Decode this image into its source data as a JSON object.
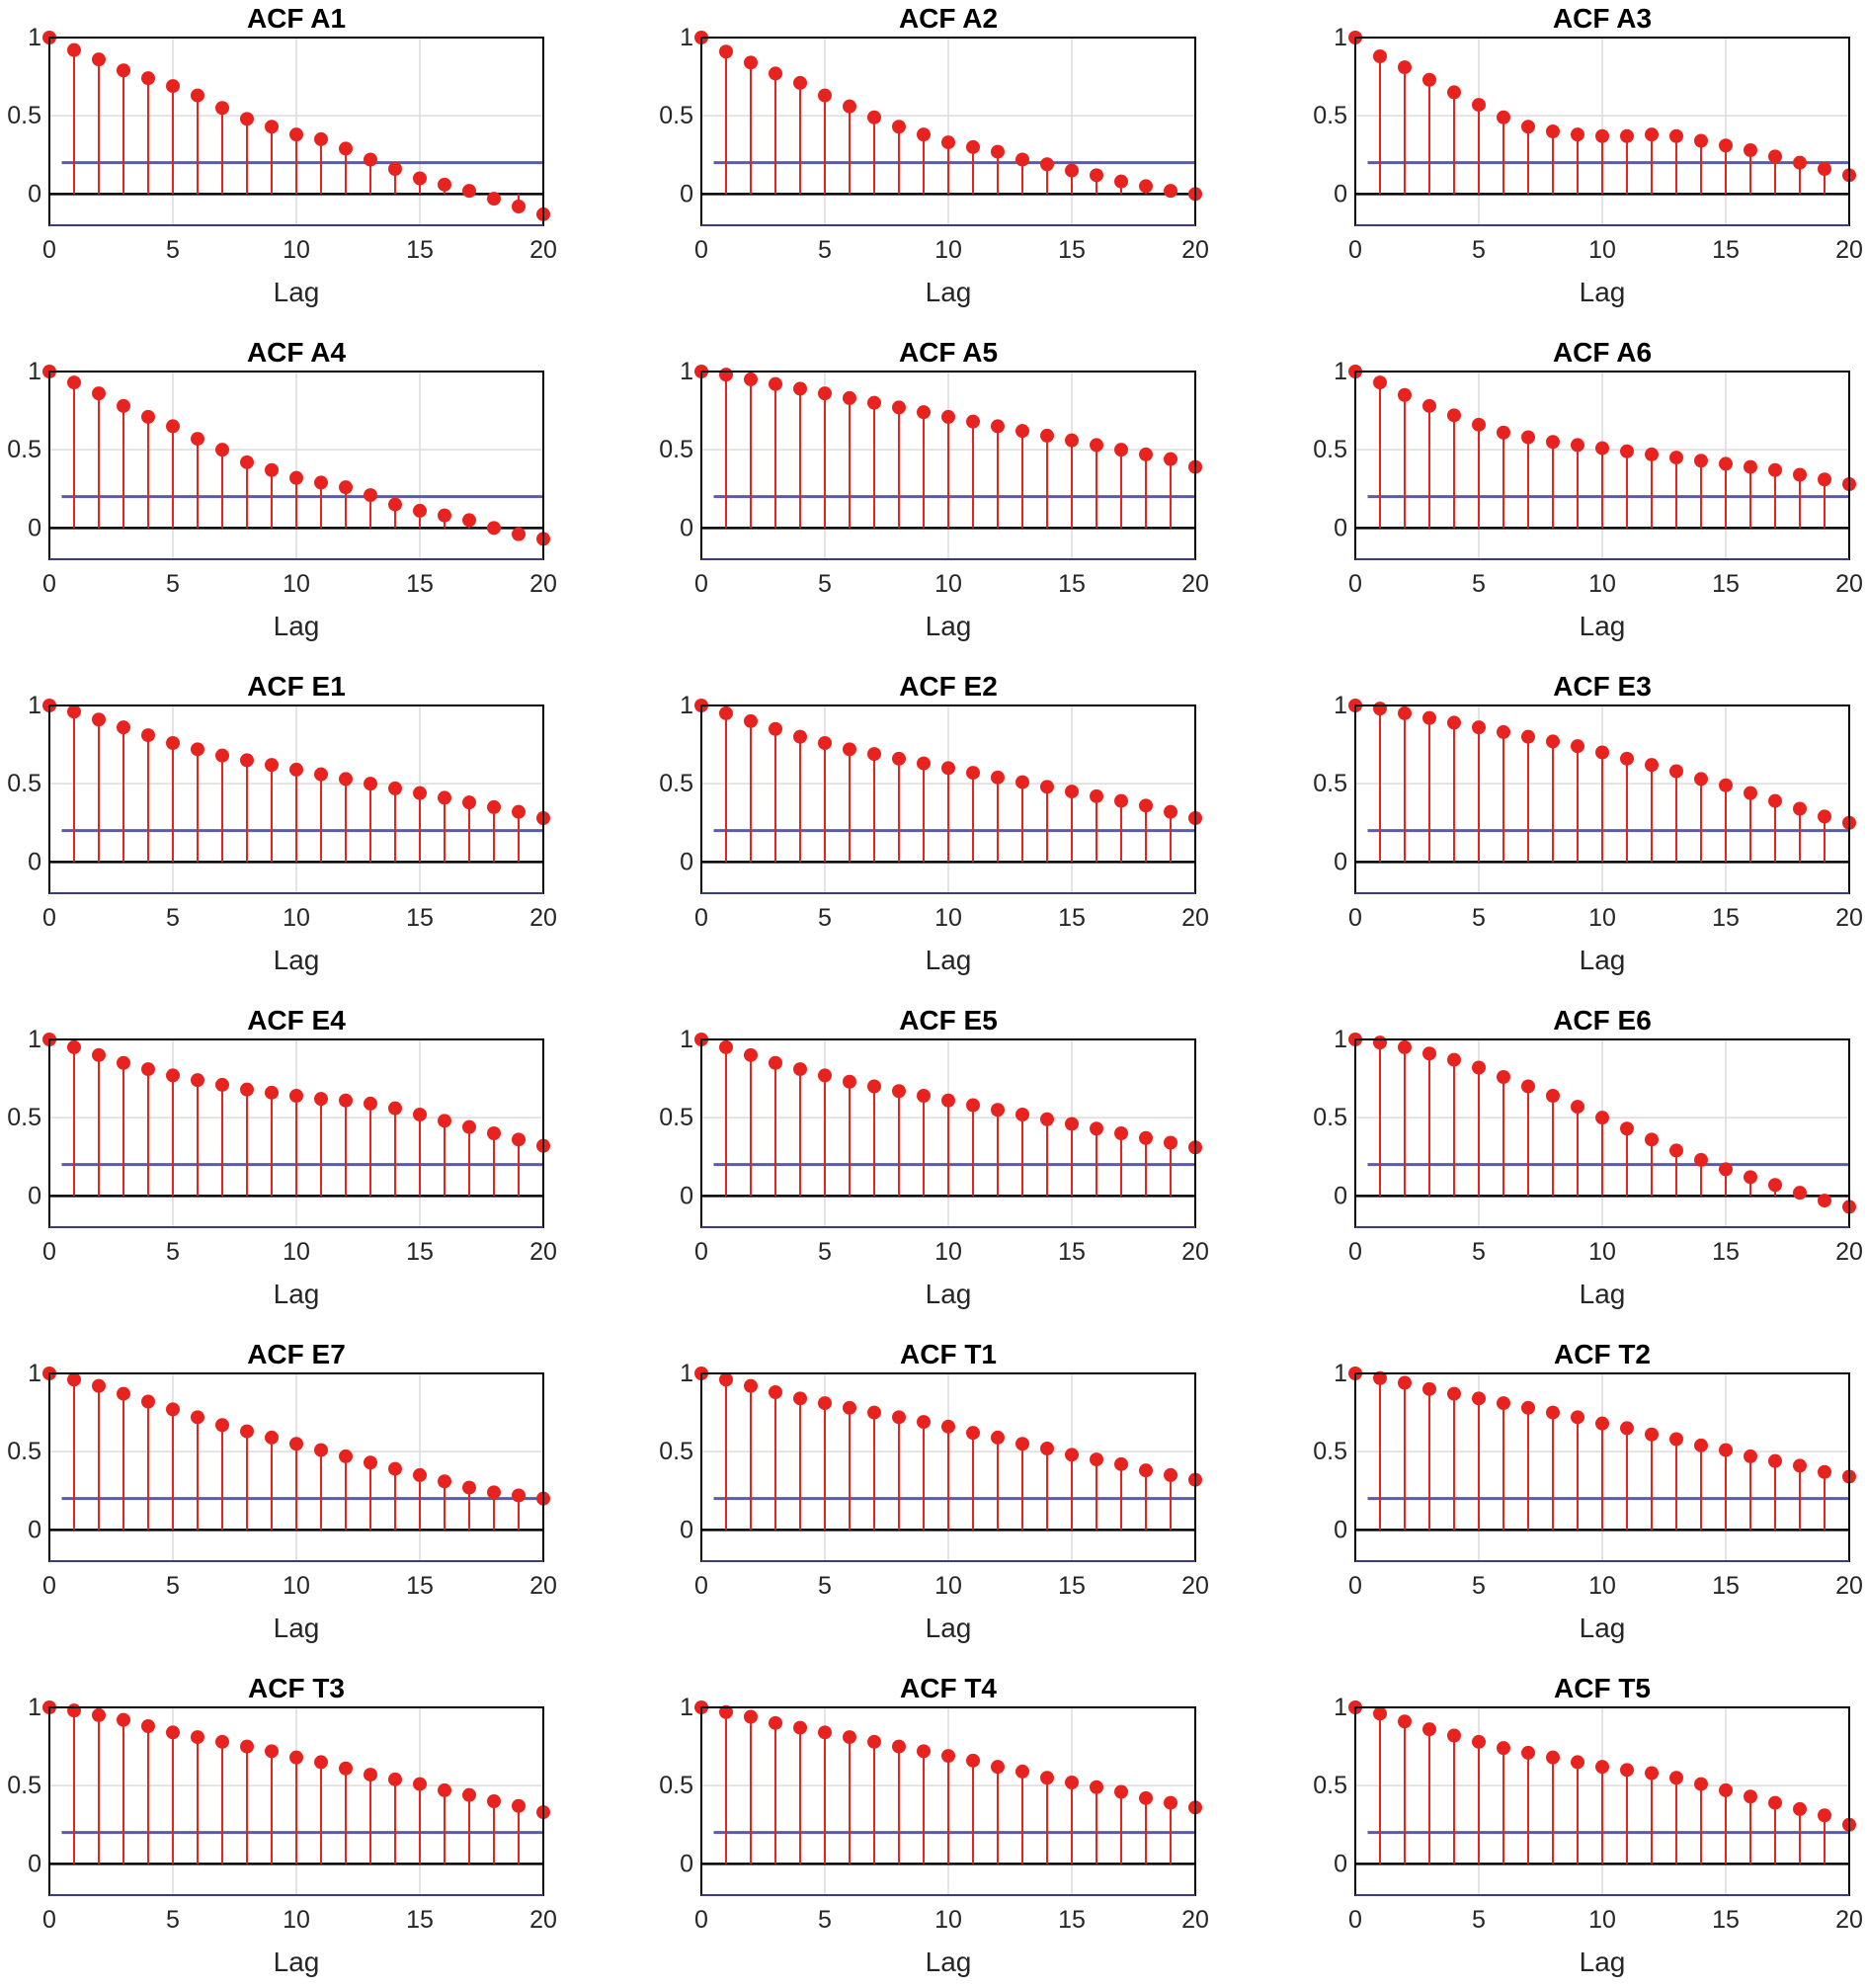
{
  "style": {
    "stem_color": "#e8231f",
    "marker_color": "#e8231f",
    "bound_color": "#5a5ab4",
    "axis_color": "#000000",
    "grid_color": "#dcdcdc",
    "zero_line_color": "#000000"
  },
  "chart_data": [
    {
      "type": "stem",
      "title": "ACF  A1",
      "xlabel": "Lag",
      "xlim": [
        0,
        20
      ],
      "ylim": [
        -0.2,
        1
      ],
      "xticks": [
        "0",
        "5",
        "10",
        "15",
        "20"
      ],
      "yticks": [
        "0",
        "0.5",
        "1"
      ],
      "grid": true,
      "upper_bound": 0.2,
      "x": [
        0,
        1,
        2,
        3,
        4,
        5,
        6,
        7,
        8,
        9,
        10,
        11,
        12,
        13,
        14,
        15,
        16,
        17,
        18,
        19,
        20
      ],
      "values": [
        1.0,
        0.92,
        0.86,
        0.79,
        0.74,
        0.69,
        0.63,
        0.55,
        0.48,
        0.43,
        0.38,
        0.35,
        0.29,
        0.22,
        0.16,
        0.1,
        0.06,
        0.02,
        -0.03,
        -0.08,
        -0.13
      ]
    },
    {
      "type": "stem",
      "title": "ACF  A2",
      "xlabel": "Lag",
      "xlim": [
        0,
        20
      ],
      "ylim": [
        -0.2,
        1
      ],
      "xticks": [
        "0",
        "5",
        "10",
        "15",
        "20"
      ],
      "yticks": [
        "0",
        "0.5",
        "1"
      ],
      "grid": true,
      "upper_bound": 0.2,
      "x": [
        0,
        1,
        2,
        3,
        4,
        5,
        6,
        7,
        8,
        9,
        10,
        11,
        12,
        13,
        14,
        15,
        16,
        17,
        18,
        19,
        20
      ],
      "values": [
        1.0,
        0.91,
        0.84,
        0.77,
        0.71,
        0.63,
        0.56,
        0.49,
        0.43,
        0.38,
        0.33,
        0.3,
        0.27,
        0.22,
        0.19,
        0.15,
        0.12,
        0.08,
        0.05,
        0.02,
        0.0
      ]
    },
    {
      "type": "stem",
      "title": "ACF  A3",
      "xlabel": "Lag",
      "xlim": [
        0,
        20
      ],
      "ylim": [
        -0.2,
        1
      ],
      "xticks": [
        "0",
        "5",
        "10",
        "15",
        "20"
      ],
      "yticks": [
        "0",
        "0.5",
        "1"
      ],
      "grid": true,
      "upper_bound": 0.2,
      "x": [
        0,
        1,
        2,
        3,
        4,
        5,
        6,
        7,
        8,
        9,
        10,
        11,
        12,
        13,
        14,
        15,
        16,
        17,
        18,
        19,
        20
      ],
      "values": [
        1.0,
        0.88,
        0.81,
        0.73,
        0.65,
        0.57,
        0.49,
        0.43,
        0.4,
        0.38,
        0.37,
        0.37,
        0.38,
        0.37,
        0.34,
        0.31,
        0.28,
        0.24,
        0.2,
        0.16,
        0.12
      ]
    },
    {
      "type": "stem",
      "title": "ACF  A4",
      "xlabel": "Lag",
      "xlim": [
        0,
        20
      ],
      "ylim": [
        -0.2,
        1
      ],
      "xticks": [
        "0",
        "5",
        "10",
        "15",
        "20"
      ],
      "yticks": [
        "0",
        "0.5",
        "1"
      ],
      "grid": true,
      "upper_bound": 0.2,
      "x": [
        0,
        1,
        2,
        3,
        4,
        5,
        6,
        7,
        8,
        9,
        10,
        11,
        12,
        13,
        14,
        15,
        16,
        17,
        18,
        19,
        20
      ],
      "values": [
        1.0,
        0.93,
        0.86,
        0.78,
        0.71,
        0.65,
        0.57,
        0.5,
        0.42,
        0.37,
        0.32,
        0.29,
        0.26,
        0.21,
        0.15,
        0.11,
        0.08,
        0.05,
        0.0,
        -0.04,
        -0.07
      ]
    },
    {
      "type": "stem",
      "title": "ACF  A5",
      "xlabel": "Lag",
      "xlim": [
        0,
        20
      ],
      "ylim": [
        -0.2,
        1
      ],
      "xticks": [
        "0",
        "5",
        "10",
        "15",
        "20"
      ],
      "yticks": [
        "0",
        "0.5",
        "1"
      ],
      "grid": true,
      "upper_bound": 0.2,
      "x": [
        0,
        1,
        2,
        3,
        4,
        5,
        6,
        7,
        8,
        9,
        10,
        11,
        12,
        13,
        14,
        15,
        16,
        17,
        18,
        19,
        20
      ],
      "values": [
        1.0,
        0.98,
        0.95,
        0.92,
        0.89,
        0.86,
        0.83,
        0.8,
        0.77,
        0.74,
        0.71,
        0.68,
        0.65,
        0.62,
        0.59,
        0.56,
        0.53,
        0.5,
        0.47,
        0.44,
        0.39
      ]
    },
    {
      "type": "stem",
      "title": "ACF  A6",
      "xlabel": "Lag",
      "xlim": [
        0,
        20
      ],
      "ylim": [
        -0.2,
        1
      ],
      "xticks": [
        "0",
        "5",
        "10",
        "15",
        "20"
      ],
      "yticks": [
        "0",
        "0.5",
        "1"
      ],
      "grid": true,
      "upper_bound": 0.2,
      "x": [
        0,
        1,
        2,
        3,
        4,
        5,
        6,
        7,
        8,
        9,
        10,
        11,
        12,
        13,
        14,
        15,
        16,
        17,
        18,
        19,
        20
      ],
      "values": [
        1.0,
        0.93,
        0.85,
        0.78,
        0.72,
        0.66,
        0.61,
        0.58,
        0.55,
        0.53,
        0.51,
        0.49,
        0.47,
        0.45,
        0.43,
        0.41,
        0.39,
        0.37,
        0.34,
        0.31,
        0.28
      ]
    },
    {
      "type": "stem",
      "title": "ACF  E1",
      "xlabel": "Lag",
      "xlim": [
        0,
        20
      ],
      "ylim": [
        -0.2,
        1
      ],
      "xticks": [
        "0",
        "5",
        "10",
        "15",
        "20"
      ],
      "yticks": [
        "0",
        "0.5",
        "1"
      ],
      "grid": true,
      "upper_bound": 0.2,
      "x": [
        0,
        1,
        2,
        3,
        4,
        5,
        6,
        7,
        8,
        9,
        10,
        11,
        12,
        13,
        14,
        15,
        16,
        17,
        18,
        19,
        20
      ],
      "values": [
        1.0,
        0.96,
        0.91,
        0.86,
        0.81,
        0.76,
        0.72,
        0.68,
        0.65,
        0.62,
        0.59,
        0.56,
        0.53,
        0.5,
        0.47,
        0.44,
        0.41,
        0.38,
        0.35,
        0.32,
        0.28
      ]
    },
    {
      "type": "stem",
      "title": "ACF  E2",
      "xlabel": "Lag",
      "xlim": [
        0,
        20
      ],
      "ylim": [
        -0.2,
        1
      ],
      "xticks": [
        "0",
        "5",
        "10",
        "15",
        "20"
      ],
      "yticks": [
        "0",
        "0.5",
        "1"
      ],
      "grid": true,
      "upper_bound": 0.2,
      "x": [
        0,
        1,
        2,
        3,
        4,
        5,
        6,
        7,
        8,
        9,
        10,
        11,
        12,
        13,
        14,
        15,
        16,
        17,
        18,
        19,
        20
      ],
      "values": [
        1.0,
        0.95,
        0.9,
        0.85,
        0.8,
        0.76,
        0.72,
        0.69,
        0.66,
        0.63,
        0.6,
        0.57,
        0.54,
        0.51,
        0.48,
        0.45,
        0.42,
        0.39,
        0.36,
        0.32,
        0.28
      ]
    },
    {
      "type": "stem",
      "title": "ACF  E3",
      "xlabel": "Lag",
      "xlim": [
        0,
        20
      ],
      "ylim": [
        -0.2,
        1
      ],
      "xticks": [
        "0",
        "5",
        "10",
        "15",
        "20"
      ],
      "yticks": [
        "0",
        "0.5",
        "1"
      ],
      "grid": true,
      "upper_bound": 0.2,
      "x": [
        0,
        1,
        2,
        3,
        4,
        5,
        6,
        7,
        8,
        9,
        10,
        11,
        12,
        13,
        14,
        15,
        16,
        17,
        18,
        19,
        20
      ],
      "values": [
        1.0,
        0.98,
        0.95,
        0.92,
        0.89,
        0.86,
        0.83,
        0.8,
        0.77,
        0.74,
        0.7,
        0.66,
        0.62,
        0.58,
        0.53,
        0.49,
        0.44,
        0.39,
        0.34,
        0.29,
        0.25
      ]
    },
    {
      "type": "stem",
      "title": "ACF  E4",
      "xlabel": "Lag",
      "xlim": [
        0,
        20
      ],
      "ylim": [
        -0.2,
        1
      ],
      "xticks": [
        "0",
        "5",
        "10",
        "15",
        "20"
      ],
      "yticks": [
        "0",
        "0.5",
        "1"
      ],
      "grid": true,
      "upper_bound": 0.2,
      "x": [
        0,
        1,
        2,
        3,
        4,
        5,
        6,
        7,
        8,
        9,
        10,
        11,
        12,
        13,
        14,
        15,
        16,
        17,
        18,
        19,
        20
      ],
      "values": [
        1.0,
        0.95,
        0.9,
        0.85,
        0.81,
        0.77,
        0.74,
        0.71,
        0.68,
        0.66,
        0.64,
        0.62,
        0.61,
        0.59,
        0.56,
        0.52,
        0.48,
        0.44,
        0.4,
        0.36,
        0.32
      ]
    },
    {
      "type": "stem",
      "title": "ACF  E5",
      "xlabel": "Lag",
      "xlim": [
        0,
        20
      ],
      "ylim": [
        -0.2,
        1
      ],
      "xticks": [
        "0",
        "5",
        "10",
        "15",
        "20"
      ],
      "yticks": [
        "0",
        "0.5",
        "1"
      ],
      "grid": true,
      "upper_bound": 0.2,
      "x": [
        0,
        1,
        2,
        3,
        4,
        5,
        6,
        7,
        8,
        9,
        10,
        11,
        12,
        13,
        14,
        15,
        16,
        17,
        18,
        19,
        20
      ],
      "values": [
        1.0,
        0.95,
        0.9,
        0.85,
        0.81,
        0.77,
        0.73,
        0.7,
        0.67,
        0.64,
        0.61,
        0.58,
        0.55,
        0.52,
        0.49,
        0.46,
        0.43,
        0.4,
        0.37,
        0.34,
        0.31
      ]
    },
    {
      "type": "stem",
      "title": "ACF  E6",
      "xlabel": "Lag",
      "xlim": [
        0,
        20
      ],
      "ylim": [
        -0.2,
        1
      ],
      "xticks": [
        "0",
        "5",
        "10",
        "15",
        "20"
      ],
      "yticks": [
        "0",
        "0.5",
        "1"
      ],
      "grid": true,
      "upper_bound": 0.2,
      "x": [
        0,
        1,
        2,
        3,
        4,
        5,
        6,
        7,
        8,
        9,
        10,
        11,
        12,
        13,
        14,
        15,
        16,
        17,
        18,
        19,
        20
      ],
      "values": [
        1.0,
        0.98,
        0.95,
        0.91,
        0.87,
        0.82,
        0.76,
        0.7,
        0.64,
        0.57,
        0.5,
        0.43,
        0.36,
        0.29,
        0.23,
        0.17,
        0.12,
        0.07,
        0.02,
        -0.03,
        -0.07
      ]
    },
    {
      "type": "stem",
      "title": "ACF  E7",
      "xlabel": "Lag",
      "xlim": [
        0,
        20
      ],
      "ylim": [
        -0.2,
        1
      ],
      "xticks": [
        "0",
        "5",
        "10",
        "15",
        "20"
      ],
      "yticks": [
        "0",
        "0.5",
        "1"
      ],
      "grid": true,
      "upper_bound": 0.2,
      "x": [
        0,
        1,
        2,
        3,
        4,
        5,
        6,
        7,
        8,
        9,
        10,
        11,
        12,
        13,
        14,
        15,
        16,
        17,
        18,
        19,
        20
      ],
      "values": [
        1.0,
        0.96,
        0.92,
        0.87,
        0.82,
        0.77,
        0.72,
        0.67,
        0.63,
        0.59,
        0.55,
        0.51,
        0.47,
        0.43,
        0.39,
        0.35,
        0.31,
        0.27,
        0.24,
        0.22,
        0.2
      ]
    },
    {
      "type": "stem",
      "title": "ACF  T1",
      "xlabel": "Lag",
      "xlim": [
        0,
        20
      ],
      "ylim": [
        -0.2,
        1
      ],
      "xticks": [
        "0",
        "5",
        "10",
        "15",
        "20"
      ],
      "yticks": [
        "0",
        "0.5",
        "1"
      ],
      "grid": true,
      "upper_bound": 0.2,
      "x": [
        0,
        1,
        2,
        3,
        4,
        5,
        6,
        7,
        8,
        9,
        10,
        11,
        12,
        13,
        14,
        15,
        16,
        17,
        18,
        19,
        20
      ],
      "values": [
        1.0,
        0.96,
        0.92,
        0.88,
        0.84,
        0.81,
        0.78,
        0.75,
        0.72,
        0.69,
        0.66,
        0.62,
        0.59,
        0.55,
        0.52,
        0.48,
        0.45,
        0.42,
        0.38,
        0.35,
        0.32
      ]
    },
    {
      "type": "stem",
      "title": "ACF  T2",
      "xlabel": "Lag",
      "xlim": [
        0,
        20
      ],
      "ylim": [
        -0.2,
        1
      ],
      "xticks": [
        "0",
        "5",
        "10",
        "15",
        "20"
      ],
      "yticks": [
        "0",
        "0.5",
        "1"
      ],
      "grid": true,
      "upper_bound": 0.2,
      "x": [
        0,
        1,
        2,
        3,
        4,
        5,
        6,
        7,
        8,
        9,
        10,
        11,
        12,
        13,
        14,
        15,
        16,
        17,
        18,
        19,
        20
      ],
      "values": [
        1.0,
        0.97,
        0.94,
        0.9,
        0.87,
        0.84,
        0.81,
        0.78,
        0.75,
        0.72,
        0.68,
        0.65,
        0.61,
        0.58,
        0.54,
        0.51,
        0.47,
        0.44,
        0.41,
        0.37,
        0.34
      ]
    },
    {
      "type": "stem",
      "title": "ACF  T3",
      "xlabel": "Lag",
      "xlim": [
        0,
        20
      ],
      "ylim": [
        -0.2,
        1
      ],
      "xticks": [
        "0",
        "5",
        "10",
        "15",
        "20"
      ],
      "yticks": [
        "0",
        "0.5",
        "1"
      ],
      "grid": true,
      "upper_bound": 0.2,
      "x": [
        0,
        1,
        2,
        3,
        4,
        5,
        6,
        7,
        8,
        9,
        10,
        11,
        12,
        13,
        14,
        15,
        16,
        17,
        18,
        19,
        20
      ],
      "values": [
        1.0,
        0.98,
        0.95,
        0.92,
        0.88,
        0.84,
        0.81,
        0.78,
        0.75,
        0.72,
        0.68,
        0.65,
        0.61,
        0.57,
        0.54,
        0.51,
        0.47,
        0.44,
        0.4,
        0.37,
        0.33
      ]
    },
    {
      "type": "stem",
      "title": "ACF  T4",
      "xlabel": "Lag",
      "xlim": [
        0,
        20
      ],
      "ylim": [
        -0.2,
        1
      ],
      "xticks": [
        "0",
        "5",
        "10",
        "15",
        "20"
      ],
      "yticks": [
        "0",
        "0.5",
        "1"
      ],
      "grid": true,
      "upper_bound": 0.2,
      "x": [
        0,
        1,
        2,
        3,
        4,
        5,
        6,
        7,
        8,
        9,
        10,
        11,
        12,
        13,
        14,
        15,
        16,
        17,
        18,
        19,
        20
      ],
      "values": [
        1.0,
        0.97,
        0.94,
        0.9,
        0.87,
        0.84,
        0.81,
        0.78,
        0.75,
        0.72,
        0.69,
        0.66,
        0.62,
        0.59,
        0.55,
        0.52,
        0.49,
        0.46,
        0.42,
        0.39,
        0.36
      ]
    },
    {
      "type": "stem",
      "title": "ACF  T5",
      "xlabel": "Lag",
      "xlim": [
        0,
        20
      ],
      "ylim": [
        -0.2,
        1
      ],
      "xticks": [
        "0",
        "5",
        "10",
        "15",
        "20"
      ],
      "yticks": [
        "0",
        "0.5",
        "1"
      ],
      "grid": true,
      "upper_bound": 0.2,
      "x": [
        0,
        1,
        2,
        3,
        4,
        5,
        6,
        7,
        8,
        9,
        10,
        11,
        12,
        13,
        14,
        15,
        16,
        17,
        18,
        19,
        20
      ],
      "values": [
        1.0,
        0.96,
        0.91,
        0.86,
        0.82,
        0.78,
        0.74,
        0.71,
        0.68,
        0.65,
        0.62,
        0.6,
        0.58,
        0.55,
        0.51,
        0.47,
        0.43,
        0.39,
        0.35,
        0.31,
        0.25
      ]
    }
  ]
}
